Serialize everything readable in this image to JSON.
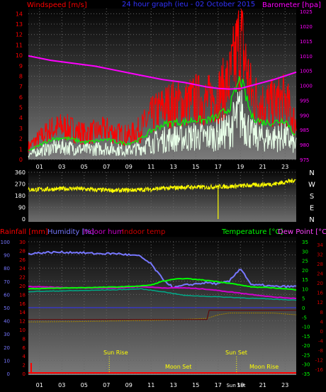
{
  "colors": {
    "windspeed": "#ff0000",
    "wind_avg": "#00ff00",
    "gust_base": "#e8ffe8",
    "barometer": "#ff00ff",
    "direction": "#ffff00",
    "title": "#3333ff",
    "rain": "#ff0000",
    "humidity": "#7777ff",
    "indoor_hum": "#d000d0",
    "indoor_temp": "#d00000",
    "temperature": "#00ff00",
    "dewpoint": "#ff44ff",
    "axis_text": "#ffffff"
  },
  "hour_ticks": [
    "01",
    "03",
    "05",
    "07",
    "09",
    "11",
    "13",
    "15",
    "17",
    "19",
    "21",
    "23"
  ],
  "top": {
    "left_label": "Windspeed [m/s]",
    "title": "24 hour graph (ieu - 02 October 2015",
    "right_label": "Barometer [hpa]",
    "y_left_ticks": [
      "0",
      "1",
      "2",
      "3",
      "4",
      "5",
      "6",
      "7",
      "8",
      "9",
      "10",
      "11",
      "12",
      "13",
      "14"
    ],
    "y_right_ticks": [
      "975",
      "980",
      "985",
      "990",
      "995",
      "1000",
      "1005",
      "1010",
      "1015",
      "1020",
      "1025"
    ]
  },
  "direction": {
    "y_ticks": [
      "0",
      "90",
      "180",
      "270",
      "360"
    ],
    "compass": [
      "N",
      "W",
      "S",
      "E",
      "N"
    ]
  },
  "bottom": {
    "legend": {
      "rainfall": "Rainfall [mm]",
      "humidity": "Humidity [%]",
      "indoor_hum": "Indoor hum",
      "indoor_temp": "Indoor temp",
      "temperature": "Temperature [°C]",
      "dewpoint": "Dew Point [°C]"
    },
    "y_hum_ticks": [
      "0",
      "10",
      "20",
      "30",
      "40",
      "50",
      "60",
      "70",
      "80",
      "90",
      "100"
    ],
    "y_rain_ticks": [
      "0",
      "2",
      "4",
      "6",
      "8",
      "10",
      "12",
      "14",
      "16",
      "18",
      "20",
      "22",
      "24",
      "26",
      "28",
      "30"
    ],
    "y_temp_ticks": [
      "-35",
      "-30",
      "-25",
      "-20",
      "-15",
      "-10",
      "-5",
      "0",
      "5",
      "10",
      "15",
      "20",
      "25",
      "30",
      "35"
    ],
    "y_temp2_ticks": [
      "-16",
      "-12",
      "-8",
      "-4",
      "0",
      "4",
      "8",
      "12",
      "16",
      "20",
      "24",
      "28",
      "32",
      "34"
    ],
    "annotations": {
      "sunrise": "Sun Rise",
      "sunset": "Sun Set",
      "moonset": "Moon Set",
      "moonrise": "Moon Rise",
      "sunset_tick": "Sun Set"
    }
  },
  "chart_data": [
    {
      "type": "line",
      "name": "windspeed-barometer",
      "title": "24 hour graph (ieu - 02 October 2015",
      "ylabel": "Windspeed [m/s]",
      "y2label": "Barometer [hpa]",
      "x_unit": "hour",
      "ylim": [
        0,
        14.5
      ],
      "y2lim": [
        975,
        1026
      ],
      "series": [
        {
          "name": "Windspeed [m/s]",
          "x": [
            0,
            1,
            2,
            3,
            4,
            5,
            6,
            7,
            8,
            9,
            10,
            11,
            12,
            13,
            14,
            15,
            16,
            17,
            18,
            19,
            20,
            21,
            22,
            23,
            24
          ],
          "values": [
            1.5,
            2.5,
            3.5,
            3.8,
            3.5,
            3.0,
            3.2,
            3.5,
            3.0,
            2.8,
            3.5,
            5.0,
            6.0,
            6.5,
            6.5,
            7.0,
            6.8,
            7.5,
            9.0,
            14.2,
            7.5,
            6.5,
            6.5,
            7.0,
            4.0
          ]
        },
        {
          "name": "Barometer [hpa]",
          "x": [
            0,
            2,
            4,
            6,
            8,
            10,
            12,
            14,
            16,
            17,
            18,
            19,
            20,
            22,
            24
          ],
          "values": [
            1010,
            1008.5,
            1007.5,
            1006.5,
            1005,
            1003.5,
            1002,
            1001,
            999.5,
            999,
            998.8,
            999,
            1000,
            1002,
            1004.5
          ]
        }
      ]
    },
    {
      "type": "scatter",
      "name": "wind-direction",
      "ylabel": "Direction",
      "ylim": [
        0,
        360
      ],
      "series": [
        {
          "name": "Direction",
          "x": [
            0,
            2,
            4,
            6,
            8,
            10,
            12,
            14,
            16,
            17,
            18,
            20,
            22,
            24
          ],
          "values": [
            225,
            230,
            235,
            225,
            220,
            225,
            235,
            245,
            245,
            250,
            250,
            260,
            270,
            300
          ]
        }
      ]
    },
    {
      "type": "line",
      "name": "rain-humidity-temperature",
      "ylabel": "Humidity [%]",
      "y2label": "Temperature [°C]",
      "ylim": [
        0,
        100
      ],
      "y2lim": [
        -35,
        35
      ],
      "series": [
        {
          "name": "Humidity [%]",
          "x": [
            0,
            2,
            4,
            6,
            8,
            10,
            11,
            12,
            13,
            14,
            15,
            16,
            17,
            18,
            19,
            20,
            21,
            22,
            23,
            24
          ],
          "values": [
            91,
            92,
            92,
            91,
            91,
            89,
            83,
            72,
            65,
            67,
            68,
            69,
            68,
            70,
            80,
            67,
            67,
            66,
            66,
            66
          ]
        },
        {
          "name": "Indoor hum",
          "x": [
            0,
            4,
            8,
            10,
            12,
            14,
            16,
            18,
            20,
            22,
            24
          ],
          "values": [
            66,
            65,
            65,
            66,
            65,
            65,
            64,
            62,
            60,
            58,
            57
          ]
        },
        {
          "name": "Temperature [°C]",
          "x": [
            0,
            4,
            8,
            10,
            11,
            12,
            13,
            14,
            16,
            18,
            20,
            22,
            24
          ],
          "values": [
            10,
            10.5,
            11,
            11.5,
            12,
            14,
            15,
            15.5,
            14.5,
            13,
            11,
            10.5,
            9.5
          ]
        },
        {
          "name": "Dew Point [°C]",
          "x": [
            0,
            4,
            8,
            10,
            12,
            14,
            16,
            18,
            20,
            22,
            24
          ],
          "values": [
            8.5,
            9,
            9.5,
            10,
            8.5,
            6.5,
            6,
            5.5,
            5,
            4.5,
            4
          ]
        },
        {
          "name": "Indoor temp",
          "x": [
            0,
            4,
            8,
            12,
            16,
            17,
            18,
            20,
            22,
            24
          ],
          "values": [
            14.5,
            14.6,
            14.8,
            15,
            15.5,
            16.5,
            17,
            17,
            17,
            16.5
          ]
        },
        {
          "name": "Rainfall [mm]",
          "x": [
            0,
            24
          ],
          "values": [
            0,
            0
          ]
        }
      ]
    }
  ]
}
